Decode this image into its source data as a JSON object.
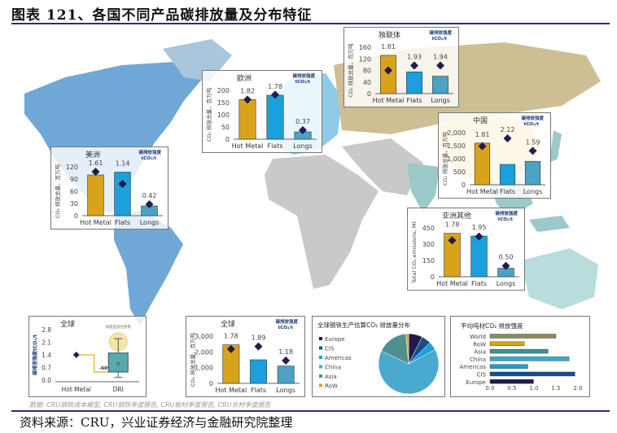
{
  "title": "图表 121、各国不同产品碳排放量及分布特征",
  "footnote": "数据: CRU钢铁成本模型, CRU钢铁季度报告, CRU板材季度报告, CRU长材季度报告",
  "source": "资料来源：CRU，兴业证券经济与金融研究院整理",
  "colors": {
    "hot_metal": "#d9a21b",
    "flats": "#1aa0dc",
    "longs": "#4aa3c4",
    "marker": "#221c4f",
    "rule": "#2b2f6b"
  },
  "chart_data": [
    {
      "id": "americas",
      "type": "bar",
      "title": "美洲",
      "ylabel": "CO₂ 排放总量，百万吨",
      "legend_note": "碳排放强度 tCO₂/t",
      "categories": [
        "Hot Metal",
        "Flats",
        "Longs"
      ],
      "values": [
        100,
        107,
        24
      ],
      "marker_values": [
        108,
        78,
        28
      ],
      "intensity_labels": [
        "1.61",
        "1.14",
        "0.42"
      ],
      "ylim": [
        0,
        120
      ],
      "yticks": [
        "0",
        "30",
        "60",
        "90",
        "120"
      ]
    },
    {
      "id": "europe",
      "type": "bar",
      "title": "欧洲",
      "ylabel": "CO₂ 排放总量，百万吨",
      "legend_note": "碳排放强度 tCO₂/t",
      "categories": [
        "Hot Metal",
        "Flats",
        "Longs"
      ],
      "values": [
        162,
        180,
        30
      ],
      "marker_values": [
        162,
        182,
        37
      ],
      "intensity_labels": [
        "1.82",
        "1.78",
        "0.37"
      ],
      "ylim": [
        0,
        200
      ],
      "yticks": [
        "0",
        "50",
        "100",
        "150",
        "200"
      ]
    },
    {
      "id": "cis",
      "type": "bar",
      "title": "独联体",
      "ylabel": "CO₂ 排放总量，百万吨",
      "legend_note": "碳排放强度 tCO₂/t",
      "categories": [
        "Hot Metal",
        "Flats",
        "Longs"
      ],
      "values": [
        132,
        75,
        60
      ],
      "marker_values": [
        80,
        97,
        97
      ],
      "intensity_labels": [
        "1.81",
        "1.93",
        "1.94"
      ],
      "ylim": [
        0,
        160
      ],
      "yticks": [
        "0",
        "40",
        "80",
        "120",
        "160"
      ]
    },
    {
      "id": "china",
      "type": "bar",
      "title": "中国",
      "ylabel": "CO₂ 排放总量，百万吨",
      "legend_note": "碳排放强度 tCO₂/t",
      "categories": [
        "Hot Metal",
        "Flats",
        "Longs"
      ],
      "values": [
        1600,
        780,
        900
      ],
      "marker_values": [
        1480,
        1780,
        1300
      ],
      "intensity_labels": [
        "1.81",
        "2.12",
        "1.59"
      ],
      "ylim": [
        0,
        2000
      ],
      "yticks": [
        "0",
        "500",
        "1,000",
        "1,500",
        "2,000"
      ]
    },
    {
      "id": "asia_other",
      "type": "bar",
      "title": "亚洲其他",
      "ylabel": "Total CO₂ emissions, Mt",
      "legend_note": "碳排放强度 tCO₂/t",
      "categories": [
        "Hot Metal",
        "Flats",
        "Longs"
      ],
      "values": [
        400,
        375,
        78
      ],
      "marker_values": [
        335,
        370,
        100
      ],
      "intensity_labels": [
        "1.78",
        "1.95",
        "0.50"
      ],
      "ylim": [
        0,
        450
      ],
      "yticks": [
        "0",
        "150",
        "300",
        "450"
      ]
    },
    {
      "id": "global",
      "type": "bar",
      "title": "全球",
      "ylabel": "CO₂ 排放总量，百万吨",
      "legend_note": "碳排放强度 tCO₂/t",
      "categories": [
        "Hot Metal",
        "Flats",
        "Longs"
      ],
      "values": [
        2450,
        1500,
        1100
      ],
      "marker_values": [
        2180,
        2350,
        1450
      ],
      "intensity_labels": [
        "1.78",
        "1.89",
        "1.18"
      ],
      "ylim": [
        0,
        3000
      ],
      "yticks": [
        "0",
        "1,000",
        "2,000",
        "3,000"
      ]
    },
    {
      "id": "global_dri",
      "type": "box",
      "title": "全球",
      "ylabel": "碳排放强度tCO₂/t",
      "categories": [
        "Hot Metal",
        "DRI"
      ],
      "hot_metal_value": 1.4,
      "dri_box": {
        "min": 0.15,
        "q1": 0.45,
        "mean": 0.95,
        "q3": 1.5,
        "max": 2.3
      },
      "annotation": "煤基直接还原铁",
      "change_label": "-60%",
      "ylim": [
        0,
        2.8
      ],
      "yticks": [
        "0.0",
        "0.7",
        "1.4",
        "2.1",
        "2.8"
      ]
    },
    {
      "id": "share",
      "type": "pie",
      "title": "全球钢铁生产估算CO₂ 排放量分布",
      "labels": [
        "Europe",
        "CIS",
        "Americas",
        "China",
        "Asia",
        "RoW"
      ],
      "values": [
        7.4,
        5.2,
        4.6,
        64.8,
        16.5,
        1.5
      ],
      "colors": [
        "#1f1a4a",
        "#134f8c",
        "#1aa0dc",
        "#4aa9cf",
        "#4f8f8f",
        "#d9a21b"
      ]
    },
    {
      "id": "intensity",
      "type": "hbar",
      "title": "平均吨材CO₂ 排放强度",
      "categories": [
        "World",
        "RoW",
        "Asia",
        "China",
        "Americas",
        "CIS",
        "Europe"
      ],
      "values": [
        1.5,
        0.78,
        1.32,
        1.8,
        0.86,
        1.93,
        0.99
      ],
      "colors": [
        "#8f8a5a",
        "#d9a21b",
        "#3f8f93",
        "#3ea6cf",
        "#1aa0dc",
        "#134f8c",
        "#1f1a4a"
      ],
      "xlim": [
        0,
        2.0
      ],
      "xticks": [
        "0.0",
        "0.5",
        "1.0",
        "1.5",
        "2.0"
      ]
    }
  ]
}
